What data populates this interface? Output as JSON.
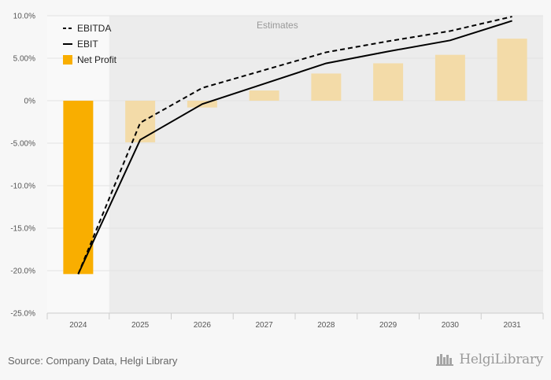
{
  "chart_data": {
    "type": "bar+line",
    "categories": [
      "2024",
      "2025",
      "2026",
      "2027",
      "2028",
      "2029",
      "2030",
      "2031"
    ],
    "estimates_label": "Estimates",
    "estimates_from_index": 1,
    "yticks": [
      "10.0%",
      "5.00%",
      "0%",
      "-5.00%",
      "-10.0%",
      "-15.0%",
      "-20.0%",
      "-25.0%"
    ],
    "ylim": [
      -25,
      10
    ],
    "series": [
      {
        "name": "EBITDA",
        "type": "line",
        "style": "dashed",
        "color": "#000000",
        "values": [
          -20.4,
          -2.6,
          1.5,
          3.6,
          5.7,
          7.0,
          8.2,
          9.9
        ]
      },
      {
        "name": "EBIT",
        "type": "line",
        "style": "solid",
        "color": "#000000",
        "values": [
          -20.4,
          -4.6,
          -0.4,
          2.0,
          4.4,
          5.8,
          7.1,
          9.4
        ]
      },
      {
        "name": "Net Profit",
        "type": "bar",
        "color": "#f9ae00",
        "estimate_color": "#f3dba8",
        "values": [
          -20.4,
          -4.9,
          -0.8,
          1.2,
          3.2,
          4.4,
          5.4,
          7.3
        ]
      }
    ],
    "legend": [
      "EBITDA",
      "EBIT",
      "Net Profit"
    ],
    "legend_position": "top-left",
    "grid": true
  },
  "footer": {
    "source": "Source: Company Data, Helgi Library",
    "logo": "HelgiLibrary",
    "logo_icon": "helgi-library-icon"
  }
}
